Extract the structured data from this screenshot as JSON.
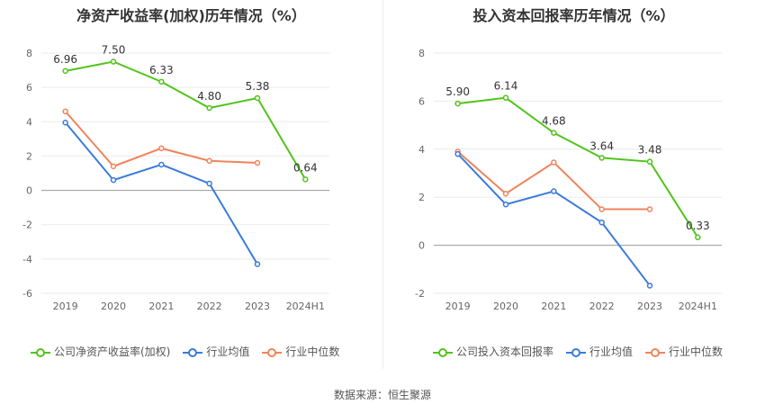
{
  "footer": {
    "source": "数据来源：恒生聚源"
  },
  "chart_data": [
    {
      "type": "line",
      "title": "净资产收益率(加权)历年情况（%）",
      "categories": [
        "2019",
        "2020",
        "2021",
        "2022",
        "2023",
        "2024H1"
      ],
      "ylim": [
        -6,
        8
      ],
      "yticks": [
        -6,
        -4,
        -2,
        0,
        2,
        4,
        6,
        8
      ],
      "grid": true,
      "legend_position": "bottom",
      "series": [
        {
          "name": "公司净资产收益率(加权)",
          "color": "#52c41a",
          "values": [
            6.96,
            7.5,
            6.33,
            4.8,
            5.38,
            0.64
          ],
          "labels": [
            "6.96",
            "7.50",
            "6.33",
            "4.80",
            "5.38",
            "0.64"
          ]
        },
        {
          "name": "行业均值",
          "color": "#3a7bdc",
          "values": [
            3.95,
            0.6,
            1.5,
            0.4,
            -4.3,
            null
          ]
        },
        {
          "name": "行业中位数",
          "color": "#f0845c",
          "values": [
            4.6,
            1.4,
            2.45,
            1.72,
            1.6,
            null
          ]
        }
      ]
    },
    {
      "type": "line",
      "title": "投入资本回报率历年情况（%）",
      "categories": [
        "2019",
        "2020",
        "2021",
        "2022",
        "2023",
        "2024H1"
      ],
      "ylim": [
        -2,
        8
      ],
      "yticks": [
        -2,
        0,
        2,
        4,
        6,
        8
      ],
      "grid": true,
      "legend_position": "bottom",
      "series": [
        {
          "name": "公司投入资本回报率",
          "color": "#52c41a",
          "values": [
            5.9,
            6.14,
            4.68,
            3.64,
            3.48,
            0.33
          ],
          "labels": [
            "5.90",
            "6.14",
            "4.68",
            "3.64",
            "3.48",
            "0.33"
          ]
        },
        {
          "name": "行业均值",
          "color": "#3a7bdc",
          "values": [
            3.8,
            1.7,
            2.25,
            0.95,
            -1.68,
            null
          ]
        },
        {
          "name": "行业中位数",
          "color": "#f0845c",
          "values": [
            3.9,
            2.15,
            3.45,
            1.5,
            1.5,
            null
          ]
        }
      ]
    }
  ]
}
